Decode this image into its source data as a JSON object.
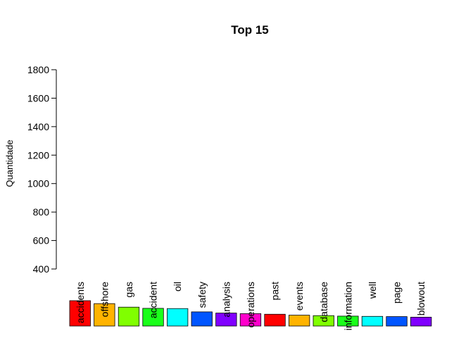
{
  "chart_data": {
    "type": "bar",
    "title": "Top 15",
    "xlabel": "",
    "ylabel": "Quantidade",
    "ylim": [
      400,
      1800
    ],
    "yticks": [
      400,
      600,
      800,
      1000,
      1200,
      1400,
      1600,
      1800
    ],
    "grid": false,
    "legend": "none",
    "categories": [
      "accidents",
      "offshore",
      "gas",
      "accident",
      "oil",
      "safety",
      "analysis",
      "operations",
      "past",
      "events",
      "database",
      "information",
      "well",
      "page",
      "blowout"
    ],
    "values": [
      215,
      190,
      160,
      150,
      148,
      120,
      110,
      105,
      100,
      92,
      88,
      84,
      82,
      80,
      75
    ],
    "colors": [
      "#FF0000",
      "#FFB300",
      "#80FF00",
      "#1AFF1A",
      "#00FFFF",
      "#0055FF",
      "#8000FF",
      "#FF00CC",
      "#FF0000",
      "#FFB300",
      "#80FF00",
      "#1AFF1A",
      "#00FFFF",
      "#0055FF",
      "#8000FF"
    ]
  }
}
